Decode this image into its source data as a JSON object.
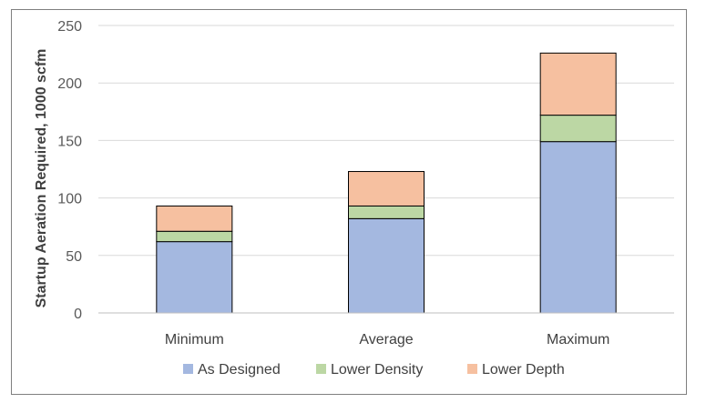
{
  "chart_data": {
    "type": "bar",
    "stacked": true,
    "categories": [
      "Minimum",
      "Average",
      "Maximum"
    ],
    "series": [
      {
        "name": "As Designed",
        "values": [
          62,
          82,
          149
        ],
        "color": "#a4b8e0"
      },
      {
        "name": "Lower Density",
        "values": [
          9,
          11,
          23
        ],
        "color": "#bcd7a4"
      },
      {
        "name": "Lower Depth",
        "values": [
          22,
          30,
          54
        ],
        "color": "#f6c0a0"
      }
    ],
    "title": "",
    "xlabel": "",
    "ylabel": "Startup Aeration Required, 1000 scfm",
    "ylim": [
      0,
      250
    ],
    "yticks": [
      0,
      50,
      100,
      150,
      200,
      250
    ],
    "grid": true,
    "legend_position": "bottom"
  }
}
